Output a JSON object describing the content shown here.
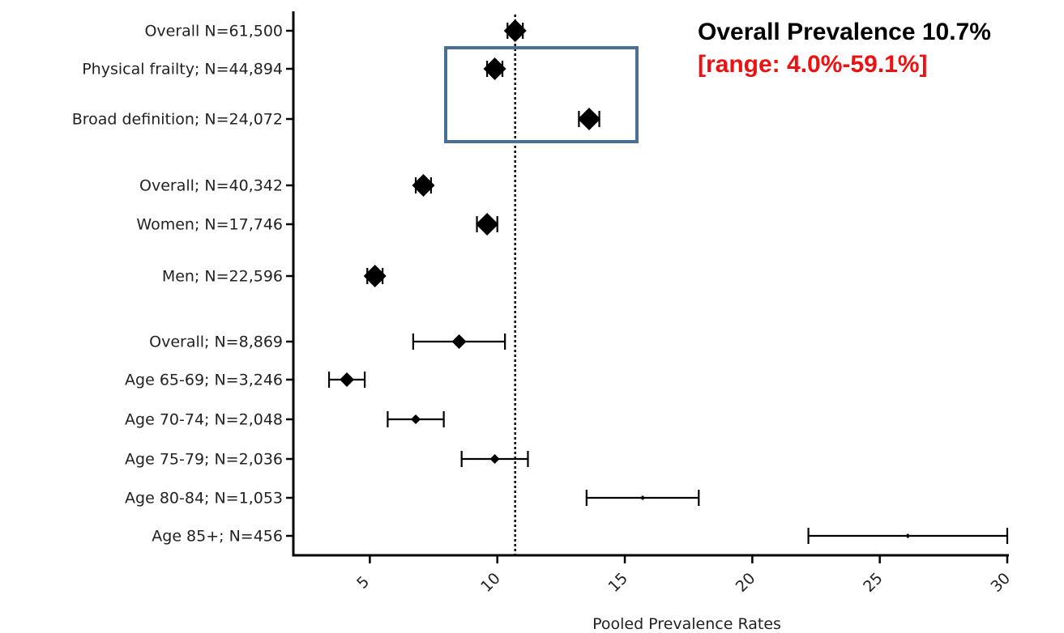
{
  "chart_data": {
    "type": "forest",
    "xlabel": "Pooled Prevalence Rates",
    "xlim": [
      2,
      30
    ],
    "xticks": [
      5,
      10,
      15,
      20,
      25,
      30
    ],
    "reference_line": 10.7,
    "rows": [
      {
        "label": "Overall N=61,500",
        "estimate": 10.7,
        "ci": [
          10.4,
          11.0
        ],
        "marker": "large"
      },
      {
        "label": "Physical frailty; N=44,894",
        "estimate": 9.9,
        "ci": [
          9.6,
          10.2
        ],
        "marker": "large"
      },
      {
        "label": "Broad definition; N=24,072",
        "estimate": 13.6,
        "ci": [
          13.2,
          14.0
        ],
        "marker": "large"
      },
      {
        "label": "Overall; N=40,342",
        "estimate": 7.1,
        "ci": [
          6.8,
          7.4
        ],
        "marker": "large"
      },
      {
        "label": "Women; N=17,746",
        "estimate": 9.6,
        "ci": [
          9.2,
          10.0
        ],
        "marker": "large"
      },
      {
        "label": "Men; N=22,596",
        "estimate": 5.2,
        "ci": [
          4.9,
          5.5
        ],
        "marker": "large"
      },
      {
        "label": "Overall; N=8,869",
        "estimate": 8.5,
        "ci": [
          6.7,
          10.3
        ],
        "marker": "medium"
      },
      {
        "label": "Age 65-69; N=3,246",
        "estimate": 4.1,
        "ci": [
          3.4,
          4.8
        ],
        "marker": "medium"
      },
      {
        "label": "Age 70-74; N=2,048",
        "estimate": 6.8,
        "ci": [
          5.7,
          7.9
        ],
        "marker": "small"
      },
      {
        "label": "Age 75-79; N=2,036",
        "estimate": 9.9,
        "ci": [
          8.6,
          11.2
        ],
        "marker": "small"
      },
      {
        "label": "Age 80-84; N=1,053",
        "estimate": 15.7,
        "ci": [
          13.5,
          17.9
        ],
        "marker": "tiny"
      },
      {
        "label": "Age 85+; N=456",
        "estimate": 26.1,
        "ci": [
          22.2,
          30.0
        ],
        "marker": "tiny"
      }
    ],
    "highlight_rows": [
      1,
      2
    ],
    "annotations": {
      "title": "Overall Prevalence 10.7%",
      "range": "[range: 4.0%-59.1%]"
    }
  },
  "colors": {
    "text": "#222222",
    "marker": "#000000",
    "highlight_box": "#4a6f96",
    "annotation_title": "#000000",
    "annotation_range": "#ee1111"
  }
}
